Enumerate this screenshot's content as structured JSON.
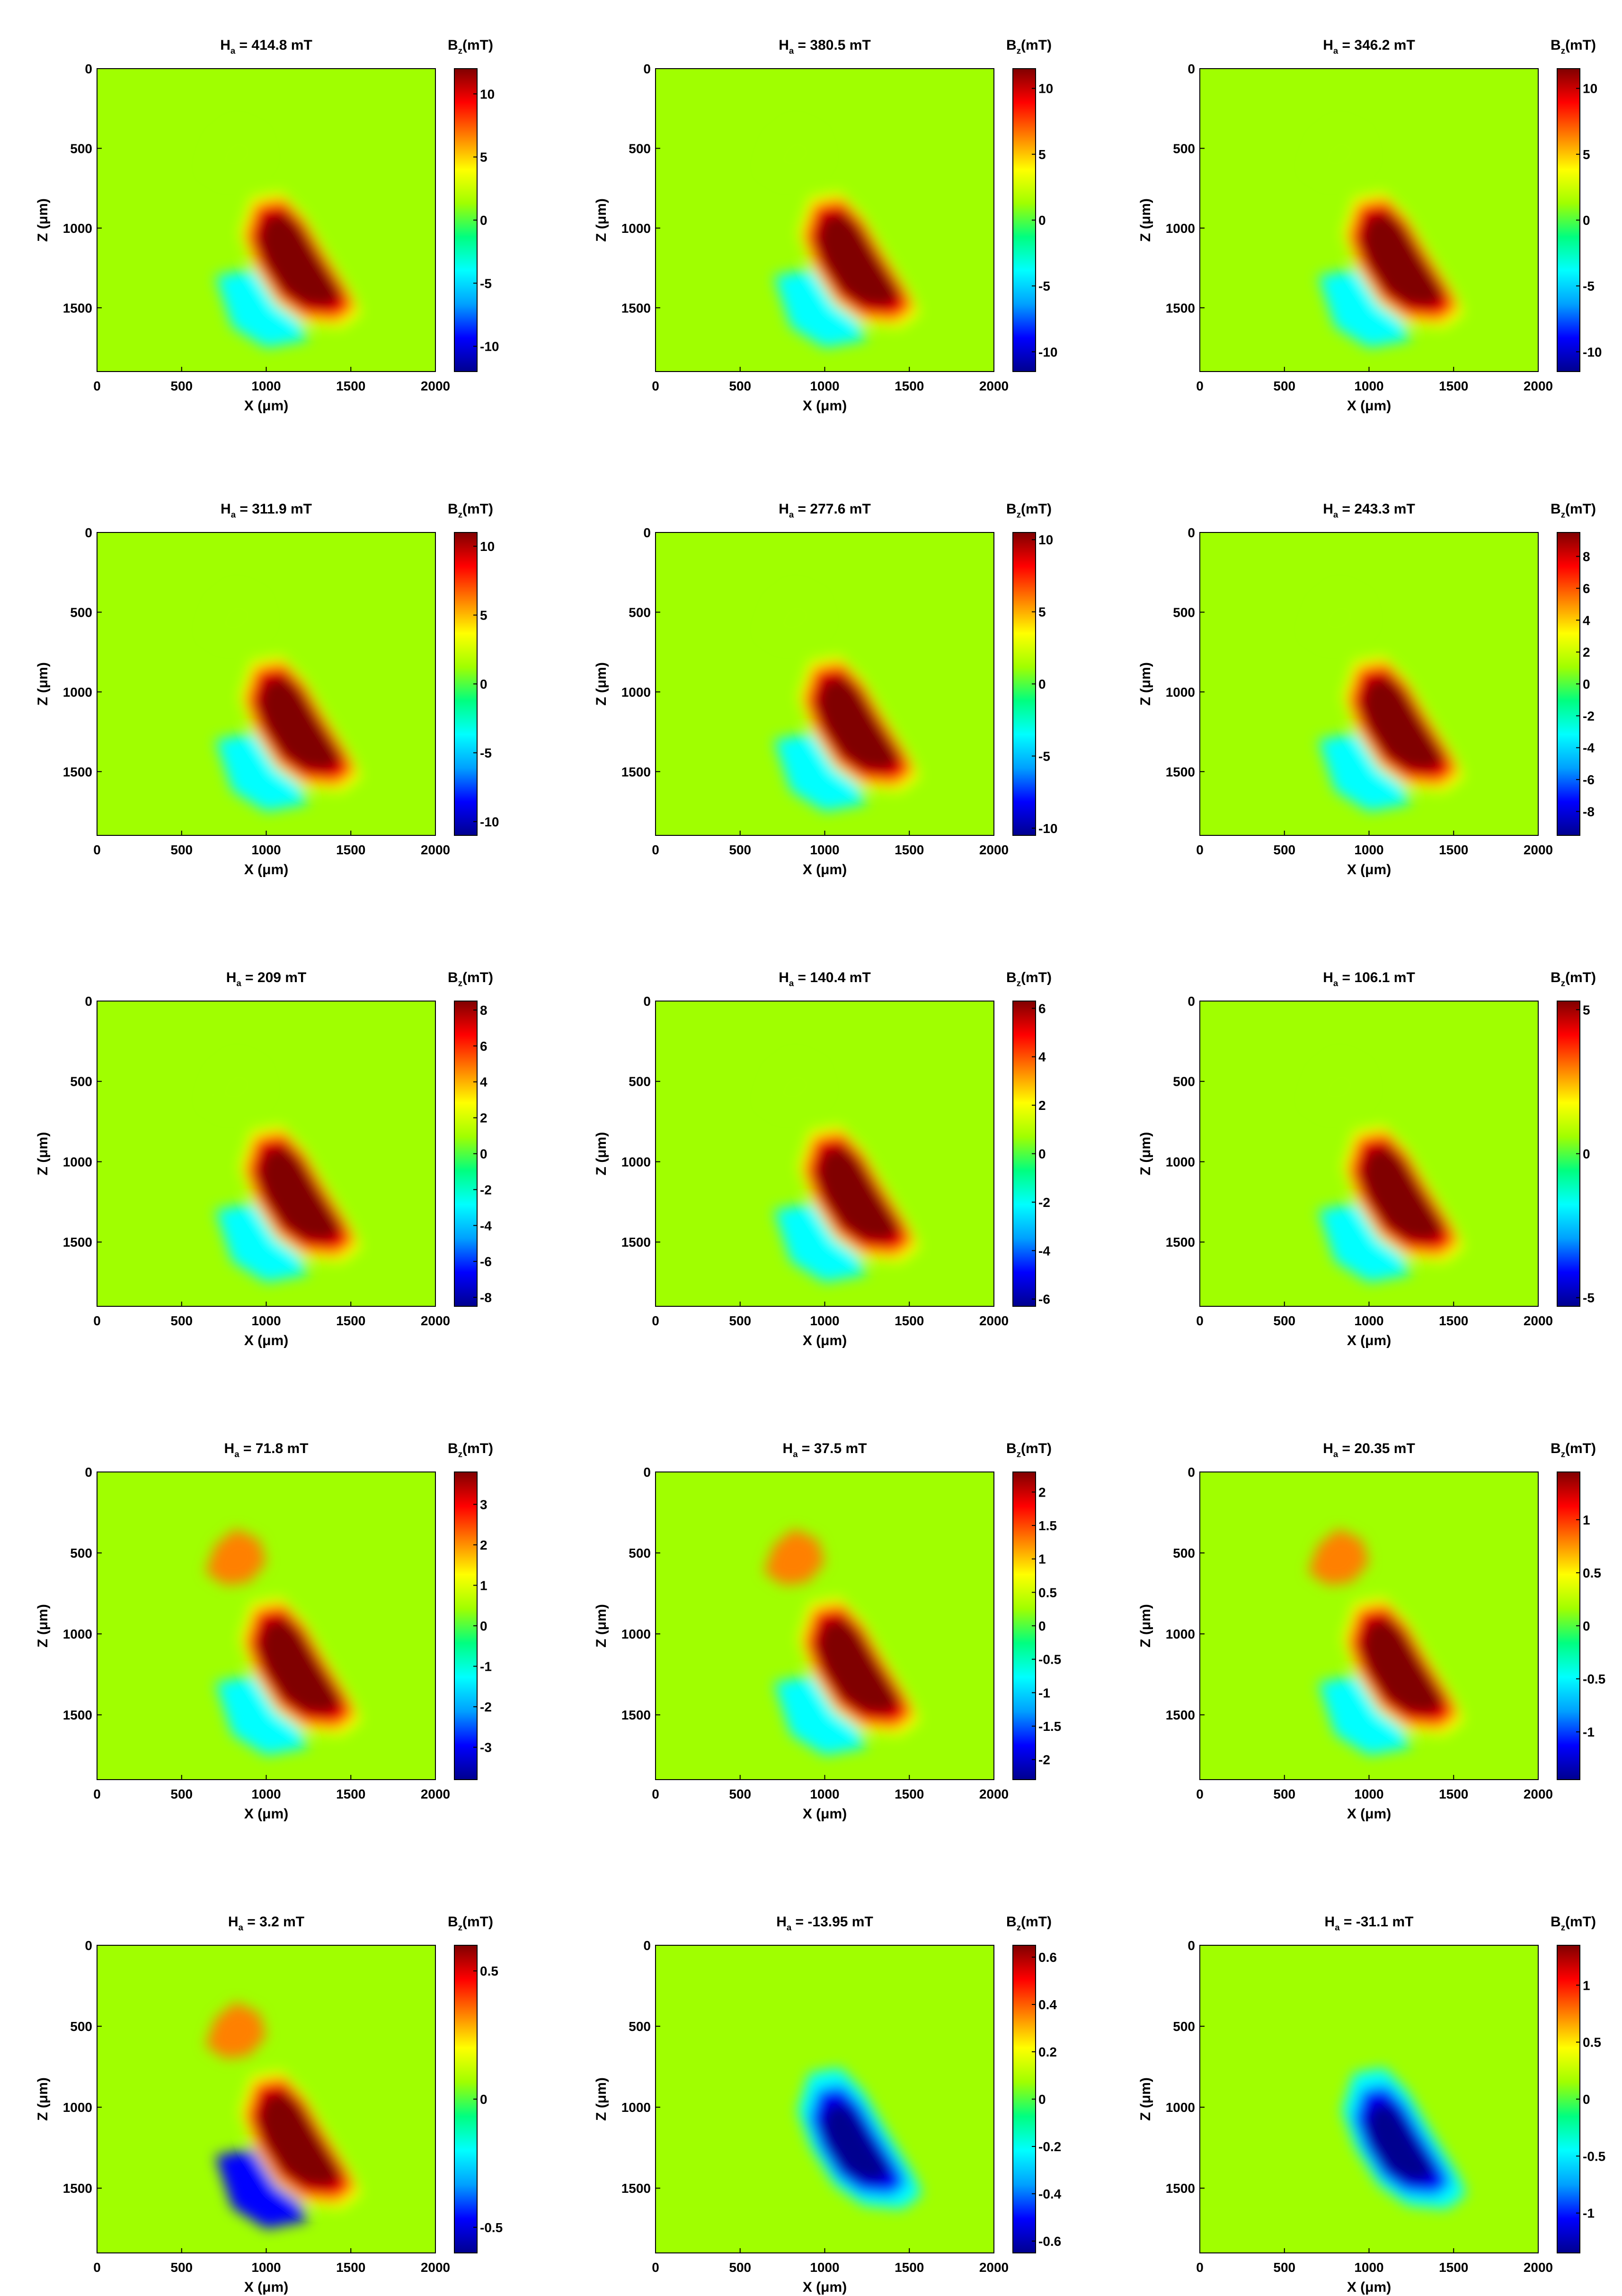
{
  "figure": {
    "colorscale": [
      "#00008f",
      "#0000ff",
      "#00a0ff",
      "#00ffff",
      "#00ff80",
      "#a0ff00",
      "#ffff00",
      "#ff8000",
      "#ff0000",
      "#800000"
    ],
    "background_color": "#00ff66",
    "x_ticks": [
      "0",
      "500",
      "1000",
      "1500",
      "2000"
    ],
    "z_ticks": [
      "0",
      "500",
      "1000",
      "1500"
    ],
    "x_label_main": "X (",
    "z_label_main": "Z (",
    "unit_mu": "μ",
    "unit_m": "m)",
    "h_main": "H",
    "h_sub": "a",
    "cb_main": "B",
    "cb_sub": "z",
    "cb_unit": "(mT)"
  },
  "chart_data": [
    {
      "type": "heatmap",
      "field_label": "= 414.8 mT",
      "colorbar_ticks": [
        "10",
        "5",
        "0",
        "-5",
        "-10"
      ],
      "colorbar_range": [
        -12,
        12
      ],
      "xlim": [
        0,
        2000
      ],
      "zlim": [
        0,
        1900
      ],
      "peak_mT": 12
    },
    {
      "type": "heatmap",
      "field_label": "= 380.5 mT",
      "colorbar_ticks": [
        "10",
        "5",
        "0",
        "-5",
        "-10"
      ],
      "colorbar_range": [
        -11.5,
        11.5
      ],
      "xlim": [
        0,
        2000
      ],
      "zlim": [
        0,
        1900
      ],
      "peak_mT": 11.5
    },
    {
      "type": "heatmap",
      "field_label": "= 346.2 mT",
      "colorbar_ticks": [
        "10",
        "5",
        "0",
        "-5",
        "-10"
      ],
      "colorbar_range": [
        -11.5,
        11.5
      ],
      "xlim": [
        0,
        2000
      ],
      "zlim": [
        0,
        1900
      ],
      "peak_mT": 11.5
    },
    {
      "type": "heatmap",
      "field_label": "= 311.9 mT",
      "colorbar_ticks": [
        "10",
        "5",
        "0",
        "-5",
        "-10"
      ],
      "colorbar_range": [
        -11,
        11
      ],
      "xlim": [
        0,
        2000
      ],
      "zlim": [
        0,
        1900
      ],
      "peak_mT": 11
    },
    {
      "type": "heatmap",
      "field_label": "= 277.6 mT",
      "colorbar_ticks": [
        "10",
        "5",
        "0",
        "-5",
        "-10"
      ],
      "colorbar_range": [
        -10.5,
        10.5
      ],
      "xlim": [
        0,
        2000
      ],
      "zlim": [
        0,
        1900
      ],
      "peak_mT": 10.5
    },
    {
      "type": "heatmap",
      "field_label": "= 243.3 mT",
      "colorbar_ticks": [
        "8",
        "6",
        "4",
        "2",
        "0",
        "-2",
        "-4",
        "-6",
        "-8"
      ],
      "colorbar_range": [
        -9.5,
        9.5
      ],
      "xlim": [
        0,
        2000
      ],
      "zlim": [
        0,
        1900
      ],
      "peak_mT": 9.5
    },
    {
      "type": "heatmap",
      "field_label": "= 209 mT",
      "colorbar_ticks": [
        "8",
        "6",
        "4",
        "2",
        "0",
        "-2",
        "-4",
        "-6",
        "-8"
      ],
      "colorbar_range": [
        -8.5,
        8.5
      ],
      "xlim": [
        0,
        2000
      ],
      "zlim": [
        0,
        1900
      ],
      "peak_mT": 8.5
    },
    {
      "type": "heatmap",
      "field_label": "= 140.4 mT",
      "colorbar_ticks": [
        "6",
        "4",
        "2",
        "0",
        "-2",
        "-4",
        "-6"
      ],
      "colorbar_range": [
        -6.3,
        6.3
      ],
      "xlim": [
        0,
        2000
      ],
      "zlim": [
        0,
        1900
      ],
      "peak_mT": 6.3
    },
    {
      "type": "heatmap",
      "field_label": "= 106.1 mT",
      "colorbar_ticks": [
        "5",
        "0",
        "-5"
      ],
      "colorbar_range": [
        -5.3,
        5.3
      ],
      "xlim": [
        0,
        2000
      ],
      "zlim": [
        0,
        1900
      ],
      "peak_mT": 5.3
    },
    {
      "type": "heatmap",
      "field_label": "= 71.8 mT",
      "colorbar_ticks": [
        "3",
        "2",
        "1",
        "0",
        "-1",
        "-2",
        "-3"
      ],
      "colorbar_range": [
        -3.8,
        3.8
      ],
      "xlim": [
        0,
        2000
      ],
      "zlim": [
        0,
        1900
      ],
      "peak_mT": 3.8
    },
    {
      "type": "heatmap",
      "field_label": "= 37.5 mT",
      "colorbar_ticks": [
        "2",
        "1.5",
        "1",
        "0.5",
        "0",
        "-0.5",
        "-1",
        "-1.5",
        "-2"
      ],
      "colorbar_range": [
        -2.3,
        2.3
      ],
      "xlim": [
        0,
        2000
      ],
      "zlim": [
        0,
        1900
      ],
      "peak_mT": 2.3
    },
    {
      "type": "heatmap",
      "field_label": "= 20.35 mT",
      "colorbar_ticks": [
        "1",
        "0.5",
        "0",
        "-0.5",
        "-1"
      ],
      "colorbar_range": [
        -1.45,
        1.45
      ],
      "xlim": [
        0,
        2000
      ],
      "zlim": [
        0,
        1900
      ],
      "peak_mT": 1.45
    },
    {
      "type": "heatmap",
      "field_label": "= 3.2 mT",
      "colorbar_ticks": [
        "0.5",
        "0",
        "-0.5"
      ],
      "colorbar_range": [
        -0.6,
        0.6
      ],
      "xlim": [
        0,
        2000
      ],
      "zlim": [
        0,
        1900
      ],
      "peak_mT": 0.6
    },
    {
      "type": "heatmap",
      "field_label": "= -13.95 mT",
      "colorbar_ticks": [
        "0.6",
        "0.4",
        "0.2",
        "0",
        "-0.2",
        "-0.4",
        "-0.6"
      ],
      "colorbar_range": [
        -0.65,
        0.65
      ],
      "xlim": [
        0,
        2000
      ],
      "zlim": [
        0,
        1900
      ],
      "peak_mT": -0.65
    },
    {
      "type": "heatmap",
      "field_label": "= -31.1 mT",
      "colorbar_ticks": [
        "1",
        "0.5",
        "0",
        "-0.5",
        "-1"
      ],
      "colorbar_range": [
        -1.35,
        1.35
      ],
      "xlim": [
        0,
        2000
      ],
      "zlim": [
        0,
        1900
      ],
      "peak_mT": -1.35
    }
  ]
}
